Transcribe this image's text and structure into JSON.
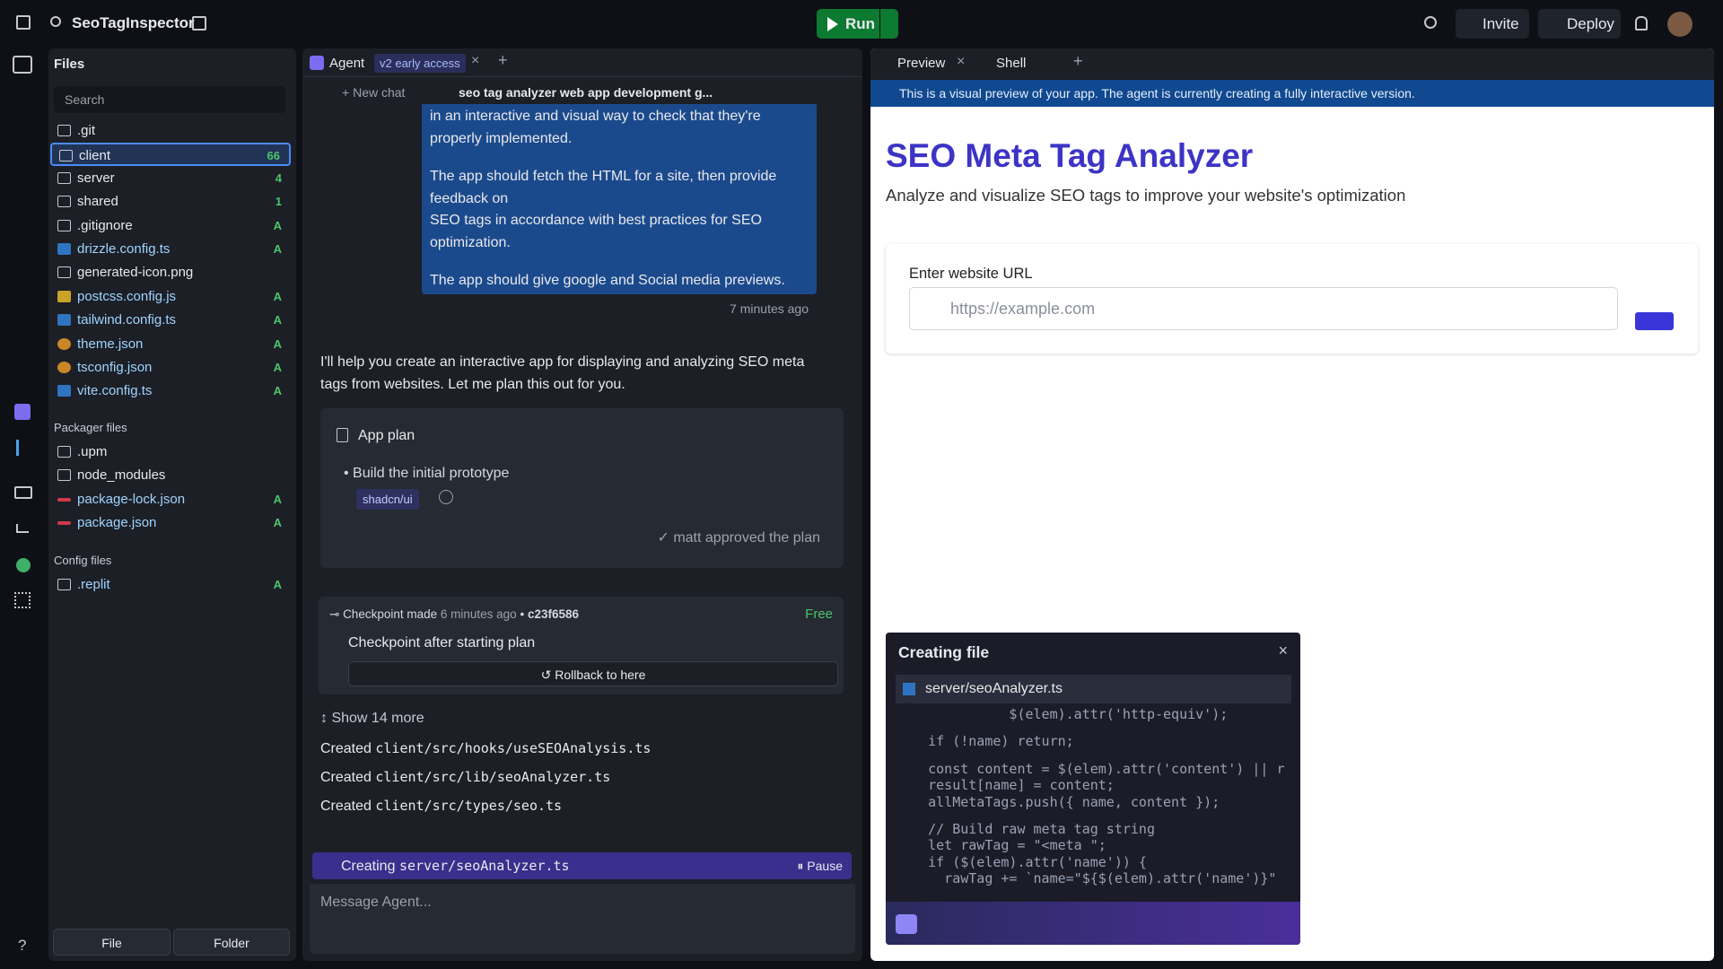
{
  "topbar": {
    "project": "SeoTagInspector",
    "run": "Run",
    "invite": "Invite",
    "deploy": "Deploy"
  },
  "files": {
    "title": "Files",
    "search": "Search",
    "items": [
      {
        "name": ".git"
      },
      {
        "name": "client",
        "badge": "66"
      },
      {
        "name": "server",
        "badge": "4"
      },
      {
        "name": "shared",
        "badge": "1"
      },
      {
        "name": ".gitignore",
        "badge": "A"
      },
      {
        "name": "drizzle.config.ts",
        "badge": "A"
      },
      {
        "name": "generated-icon.png"
      },
      {
        "name": "postcss.config.js",
        "badge": "A"
      },
      {
        "name": "tailwind.config.ts",
        "badge": "A"
      },
      {
        "name": "theme.json",
        "badge": "A"
      },
      {
        "name": "tsconfig.json",
        "badge": "A"
      },
      {
        "name": "vite.config.ts",
        "badge": "A"
      }
    ]
  },
  "packager": {
    "title": "Packager files",
    "items": [
      {
        "name": ".upm"
      },
      {
        "name": "node_modules"
      },
      {
        "name": "package-lock.json",
        "badge": "A"
      },
      {
        "name": "package.json",
        "badge": "A"
      }
    ]
  },
  "config": {
    "title": "Config files",
    "items": [
      {
        "name": ".replit",
        "badge": "A"
      }
    ]
  },
  "buttons": {
    "file": "File",
    "folder": "Folder"
  },
  "agent": {
    "tab": "Agent",
    "tab_badge": "v2 early access",
    "new_chat": "New chat",
    "chat_title": "seo tag analyzer web app development g...",
    "user_message": [
      "in an interactive and visual way to check that they're properly implemented.",
      "The app should fetch the HTML for a site, then provide feedback on\nSEO tags in accordance with best practices for SEO optimization.",
      "The app should give google and Social media previews."
    ],
    "timestamp": "7 minutes ago",
    "reply": "I'll help you create an interactive app for displaying and analyzing SEO meta tags from websites. Let me plan this out for you.",
    "plan": {
      "title": "App plan",
      "items": [
        "Build the initial prototype"
      ],
      "tag": "shadcn/ui",
      "approval": "matt approved the plan"
    },
    "checkpoint": {
      "label": "Checkpoint made",
      "time": "6 minutes ago",
      "hash": "c23f6586",
      "price": "Free",
      "title": "Checkpoint after starting plan",
      "rollback": "Rollback to here"
    },
    "show_more": "Show 14 more",
    "created": [
      {
        "verb": "Created",
        "path": "client/src/hooks/useSEOAnalysis.ts"
      },
      {
        "verb": "Created",
        "path": "client/src/lib/seoAnalyzer.ts"
      },
      {
        "verb": "Created",
        "path": "client/src/types/seo.ts"
      }
    ],
    "status": {
      "verb": "Creating",
      "path": "server/seoAnalyzer.ts",
      "pause": "Pause"
    },
    "input_placeholder": "Message Agent..."
  },
  "preview": {
    "tabs": [
      "Preview",
      "Shell"
    ],
    "notice": "This is a visual preview of your app. The agent is currently creating a fully interactive version.",
    "title": "SEO Meta Tag Analyzer",
    "subtitle": "Analyze and visualize SEO tags to improve your website's optimization",
    "url_label": "Enter website URL",
    "url_placeholder": "https://example.com"
  },
  "creating_file": {
    "title": "Creating file",
    "filename": "server/seoAnalyzer.ts",
    "code": [
      [
        "              $(elem).attr('http-equiv');"
      ],
      [
        "    if (!name) return;"
      ],
      [
        "    const content = $(elem).attr('content') || r",
        "    result[name] = content;",
        "    allMetaTags.push({ name, content });"
      ],
      [
        "    // Build raw meta tag string",
        "    let rawTag = \"<meta \";",
        "    if ($(elem).attr('name')) {",
        "      rawTag += `name=\"${$(elem).attr('name')}\""
      ]
    ]
  }
}
